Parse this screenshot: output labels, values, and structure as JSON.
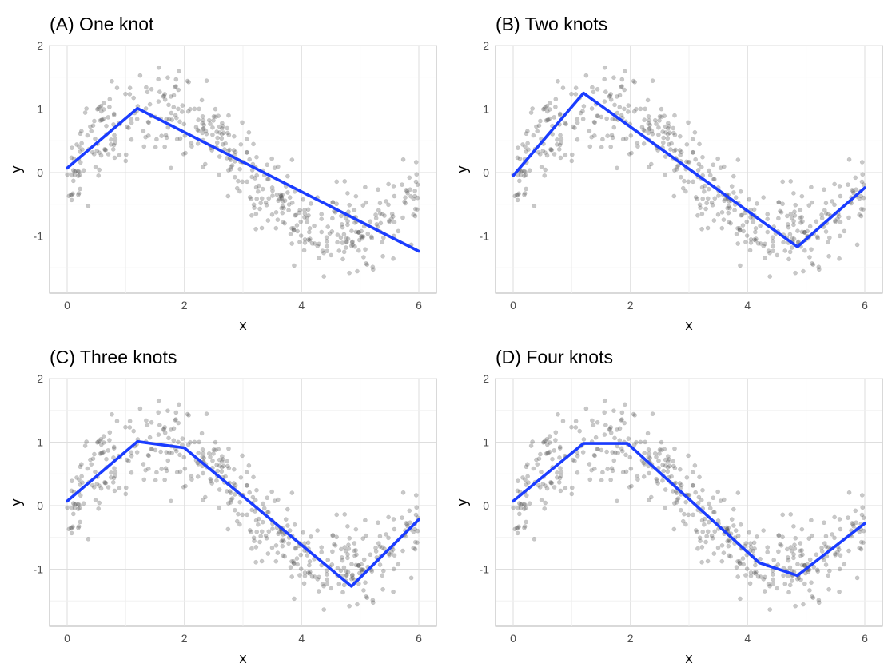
{
  "chart_data": [
    {
      "type": "scatter",
      "title": "(A) One knot",
      "xlabel": "x",
      "ylabel": "y",
      "xlim": [
        -0.3,
        6.3
      ],
      "ylim": [
        -1.9,
        2.0
      ],
      "x_ticks": [
        0,
        2,
        4,
        6
      ],
      "y_ticks": [
        2,
        1,
        0,
        -1
      ],
      "grid": true,
      "point_color": "#555555",
      "line_color": "#1a3cff",
      "fit_line": {
        "x": [
          0,
          1.2,
          6
        ],
        "y": [
          0.07,
          1.01,
          -1.24
        ]
      }
    },
    {
      "type": "scatter",
      "title": "(B) Two knots",
      "xlabel": "x",
      "ylabel": "y",
      "xlim": [
        -0.3,
        6.3
      ],
      "ylim": [
        -1.9,
        2.0
      ],
      "x_ticks": [
        0,
        2,
        4,
        6
      ],
      "y_ticks": [
        2,
        1,
        0,
        -1
      ],
      "grid": true,
      "point_color": "#555555",
      "line_color": "#1a3cff",
      "fit_line": {
        "x": [
          0,
          1.2,
          4.85,
          6
        ],
        "y": [
          -0.05,
          1.25,
          -1.17,
          -0.24
        ]
      }
    },
    {
      "type": "scatter",
      "title": "(C) Three knots",
      "xlabel": "x",
      "ylabel": "y",
      "xlim": [
        -0.3,
        6.3
      ],
      "ylim": [
        -1.9,
        2.0
      ],
      "x_ticks": [
        0,
        2,
        4,
        6
      ],
      "y_ticks": [
        2,
        1,
        0,
        -1
      ],
      "grid": true,
      "point_color": "#555555",
      "line_color": "#1a3cff",
      "fit_line": {
        "x": [
          0,
          1.2,
          2.0,
          4.85,
          6
        ],
        "y": [
          0.07,
          1.01,
          0.91,
          -1.27,
          -0.22
        ]
      }
    },
    {
      "type": "scatter",
      "title": "(D) Four knots",
      "xlabel": "x",
      "ylabel": "y",
      "xlim": [
        -0.3,
        6.3
      ],
      "ylim": [
        -1.9,
        2.0
      ],
      "x_ticks": [
        0,
        2,
        4,
        6
      ],
      "y_ticks": [
        2,
        1,
        0,
        -1
      ],
      "grid": true,
      "point_color": "#555555",
      "line_color": "#1a3cff",
      "fit_line": {
        "x": [
          0,
          1.2,
          1.95,
          4.2,
          4.85,
          6
        ],
        "y": [
          0.07,
          0.98,
          0.98,
          -0.9,
          -1.1,
          -0.28
        ]
      }
    }
  ]
}
